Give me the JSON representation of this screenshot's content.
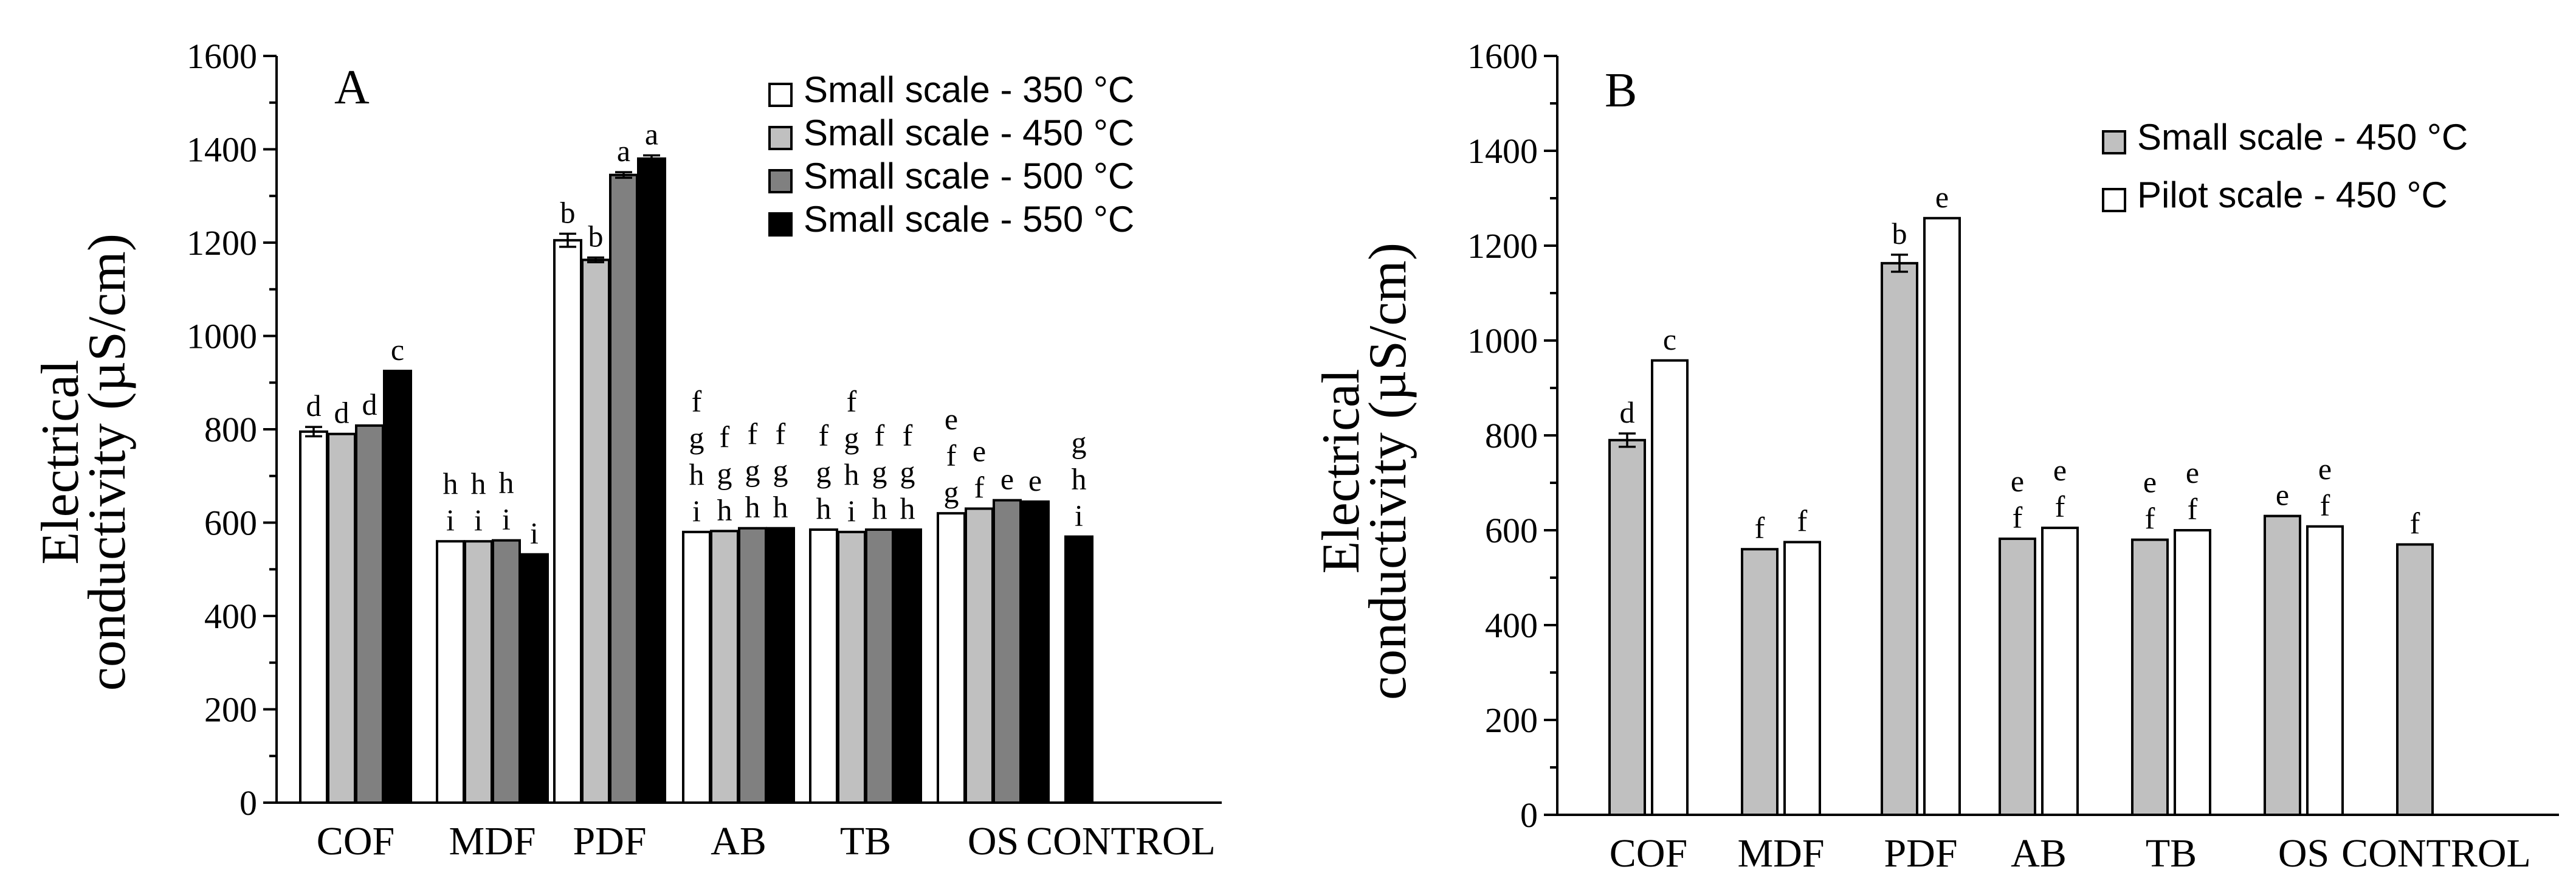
{
  "chart_data": [
    {
      "panel": "A",
      "type": "bar",
      "ylabel_line1": "Electrical",
      "ylabel_line2": "conductivity (µS/cm)",
      "ylim": [
        0,
        1600
      ],
      "yticks": [
        0,
        200,
        400,
        600,
        800,
        1000,
        1200,
        1400,
        1600
      ],
      "categories": [
        "COF",
        "MDF",
        "PDF",
        "AB",
        "TB",
        "OS",
        "CONTROL"
      ],
      "legend_position": "top-right",
      "series": [
        {
          "name": "Small scale - 350 °C",
          "color": "#ffffff",
          "values": [
            795,
            560,
            1205,
            580,
            585,
            620,
            null
          ],
          "errors": [
            10,
            0,
            14,
            0,
            0,
            0,
            null
          ],
          "letters": [
            [
              "d"
            ],
            [
              "h",
              "i"
            ],
            [
              "b"
            ],
            [
              "f",
              "g",
              "h",
              "i"
            ],
            [
              "f",
              "g",
              "h"
            ],
            [
              "e",
              "f",
              "g"
            ],
            []
          ]
        },
        {
          "name": "Small scale - 450 °C",
          "color": "#c0c0c0",
          "values": [
            790,
            560,
            1163,
            582,
            580,
            630,
            null
          ],
          "errors": [
            0,
            0,
            5,
            0,
            0,
            0,
            null
          ],
          "letters": [
            [
              "d"
            ],
            [
              "h",
              "i"
            ],
            [
              "b"
            ],
            [
              "f",
              "g",
              "h"
            ],
            [
              "f",
              "g",
              "h",
              "i"
            ],
            [
              "e",
              "f"
            ],
            []
          ]
        },
        {
          "name": "Small scale - 500 °C",
          "color": "#808080",
          "values": [
            808,
            562,
            1345,
            588,
            585,
            648,
            null
          ],
          "errors": [
            0,
            0,
            6,
            0,
            0,
            0,
            null
          ],
          "letters": [
            [
              "d"
            ],
            [
              "h",
              "i"
            ],
            [
              "a"
            ],
            [
              "f",
              "g",
              "h"
            ],
            [
              "f",
              "g",
              "h"
            ],
            [
              "e"
            ],
            []
          ]
        },
        {
          "name": "Small scale - 550 °C",
          "color": "#000000",
          "values": [
            925,
            532,
            1380,
            588,
            585,
            645,
            570
          ],
          "errors": [
            0,
            0,
            7,
            0,
            0,
            0,
            0
          ],
          "letters": [
            [
              "c"
            ],
            [
              "i"
            ],
            [
              "a"
            ],
            [
              "f",
              "g",
              "h"
            ],
            [
              "f",
              "g",
              "h"
            ],
            [
              "e"
            ],
            [
              "g",
              "h",
              "i"
            ]
          ]
        }
      ]
    },
    {
      "panel": "B",
      "type": "bar",
      "ylabel_line1": "Electrical",
      "ylabel_line2": "conductivity (µS/cm)",
      "ylim": [
        0,
        1600
      ],
      "yticks": [
        0,
        200,
        400,
        600,
        800,
        1000,
        1200,
        1400,
        1600
      ],
      "categories": [
        "COF",
        "MDF",
        "PDF",
        "AB",
        "TB",
        "OS",
        "CONTROL"
      ],
      "legend_position": "top-right",
      "series": [
        {
          "name": "Small scale - 450 °C",
          "color": "#c0c0c0",
          "values": [
            790,
            560,
            1163,
            582,
            580,
            630,
            570
          ],
          "errors": [
            14,
            0,
            18,
            0,
            0,
            0,
            0
          ],
          "letters": [
            [
              "d"
            ],
            [
              "f"
            ],
            [
              "b"
            ],
            [
              "e",
              "f"
            ],
            [
              "e",
              "f"
            ],
            [
              "e"
            ],
            [
              "f"
            ]
          ]
        },
        {
          "name": "Pilot scale - 450 °C",
          "color": "#ffffff",
          "values": [
            958,
            575,
            1258,
            605,
            600,
            608,
            null
          ],
          "errors": [
            0,
            0,
            0,
            0,
            0,
            0,
            null
          ],
          "letters": [
            [
              "c"
            ],
            [
              "f"
            ],
            [
              "e"
            ],
            [
              "e",
              "f"
            ],
            [
              "e",
              "f"
            ],
            [
              "e",
              "f"
            ],
            []
          ]
        }
      ]
    }
  ]
}
